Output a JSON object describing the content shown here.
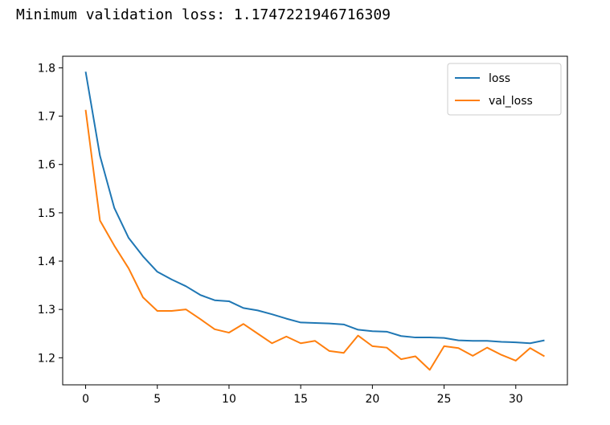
{
  "output": {
    "text": "Minimum validation loss: 1.1747221946716309"
  },
  "chart_data": {
    "type": "line",
    "x": [
      0,
      1,
      2,
      3,
      4,
      5,
      6,
      7,
      8,
      9,
      10,
      11,
      12,
      13,
      14,
      15,
      16,
      17,
      18,
      19,
      20,
      21,
      22,
      23,
      24,
      25,
      26,
      27,
      28,
      29,
      30,
      31,
      32
    ],
    "series": [
      {
        "name": "loss",
        "color": "#1f77b4",
        "values": [
          1.792,
          1.618,
          1.51,
          1.448,
          1.41,
          1.378,
          1.362,
          1.348,
          1.33,
          1.319,
          1.317,
          1.303,
          1.298,
          1.29,
          1.281,
          1.273,
          1.272,
          1.271,
          1.269,
          1.258,
          1.255,
          1.254,
          1.245,
          1.242,
          1.242,
          1.241,
          1.236,
          1.235,
          1.235,
          1.233,
          1.232,
          1.23,
          1.236
        ]
      },
      {
        "name": "val_loss",
        "color": "#ff7f0e",
        "values": [
          1.713,
          1.484,
          1.432,
          1.385,
          1.325,
          1.297,
          1.297,
          1.3,
          1.28,
          1.259,
          1.252,
          1.27,
          1.25,
          1.23,
          1.244,
          1.23,
          1.235,
          1.214,
          1.21,
          1.246,
          1.224,
          1.221,
          1.197,
          1.203,
          1.175,
          1.224,
          1.22,
          1.204,
          1.221,
          1.206,
          1.194,
          1.22,
          1.203
        ]
      }
    ],
    "xlim": [
      -1.6,
      33.6
    ],
    "ylim": [
      1.144,
      1.824
    ],
    "xticks": [
      0,
      5,
      10,
      15,
      20,
      25,
      30
    ],
    "yticks": [
      1.2,
      1.3,
      1.4,
      1.5,
      1.6,
      1.7,
      1.8
    ],
    "ytick_labels": [
      "1.2",
      "1.3",
      "1.4",
      "1.5",
      "1.6",
      "1.7",
      "1.8"
    ],
    "grid": false,
    "legend_position": "upper-right"
  }
}
